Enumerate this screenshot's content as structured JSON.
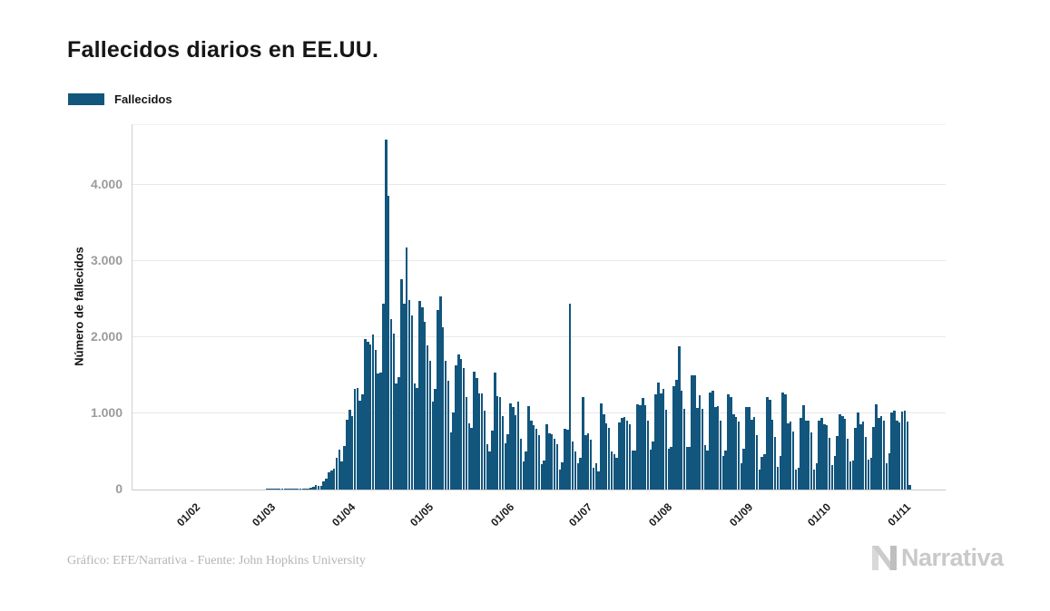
{
  "header": {
    "title": "Fallecidos diarios en EE.UU."
  },
  "legend": {
    "label": "Fallecidos",
    "swatch_color": "#12567D"
  },
  "footer": {
    "credit": "Gráfico: EFE/Narrativa - Fuente: John Hopkins University",
    "brand": "Narrativa"
  },
  "chart_data": {
    "type": "bar",
    "title": "Fallecidos diarios en EE.UU.",
    "series_name": "Fallecidos",
    "ylabel": "Número de fallecidos",
    "xlabel": "",
    "grid": true,
    "legend_position": "top-left",
    "bar_color": "#12567D",
    "ylim": [
      0,
      4782
    ],
    "y_ticks": [
      0,
      1000,
      2000,
      3000,
      4000
    ],
    "y_tick_labels": [
      "0",
      "1.000",
      "2.000",
      "3.000",
      "4.000"
    ],
    "x_start_date": "2020-01-22",
    "x_tick_labels": [
      "01/02",
      "01/03",
      "01/04",
      "01/05",
      "01/06",
      "01/07",
      "01/08",
      "01/09",
      "01/10",
      "01/11"
    ],
    "x_tick_day_offsets": [
      10,
      39,
      70,
      100,
      131,
      161,
      192,
      223,
      253,
      284
    ],
    "values": [
      0,
      0,
      0,
      0,
      0,
      0,
      0,
      0,
      0,
      0,
      0,
      0,
      0,
      0,
      0,
      0,
      0,
      0,
      0,
      0,
      0,
      0,
      0,
      0,
      0,
      0,
      0,
      0,
      0,
      0,
      0,
      0,
      0,
      0,
      0,
      0,
      0,
      0,
      1,
      1,
      5,
      1,
      4,
      1,
      3,
      2,
      4,
      4,
      2,
      8,
      3,
      8,
      9,
      12,
      17,
      23,
      41,
      57,
      49,
      46,
      111,
      140,
      225,
      247,
      268,
      411,
      525,
      363,
      573,
      912,
      1049,
      968,
      1321,
      1331,
      1165,
      1255,
      1970,
      1940,
      1900,
      2035,
      1830,
      1528,
      1535,
      2440,
      4591,
      3857,
      2240,
      2048,
      1393,
      1472,
      2762,
      2437,
      3179,
      2484,
      2286,
      1393,
      1333,
      2470,
      2390,
      2201,
      1897,
      1691,
      1154,
      1324,
      2350,
      2528,
      2129,
      1687,
      1422,
      750,
      1008,
      1630,
      1772,
      1715,
      1595,
      1218,
      865,
      808,
      1552,
      1461,
      1263,
      1260,
      1035,
      592,
      505,
      774,
      1535,
      1223,
      1212,
      960,
      605,
      730,
      1134,
      1083,
      974,
      1155,
      670,
      373,
      497,
      1093,
      906,
      841,
      802,
      710,
      330,
      380,
      851,
      738,
      722,
      672,
      594,
      267,
      354,
      800,
      781,
      2437,
      629,
      502,
      340,
      419,
      1209,
      715,
      735,
      656,
      281,
      340,
      241,
      1130,
      992,
      874,
      814,
      498,
      459,
      416,
      886,
      941,
      955,
      908,
      859,
      513,
      516,
      1117,
      1106,
      1205,
      1101,
      907,
      528,
      636,
      1244,
      1403,
      1258,
      1320,
      1052,
      537,
      556,
      1362,
      1438,
      1876,
      1299,
      1064,
      561,
      565,
      1504,
      1499,
      1076,
      1232,
      1053,
      578,
      506,
      1276,
      1302,
      1082,
      1096,
      903,
      446,
      511,
      1249,
      1217,
      992,
      952,
      889,
      340,
      531,
      1083,
      1077,
      914,
      955,
      717,
      267,
      424,
      459,
      1208,
      1180,
      919,
      692,
      298,
      436,
      1270,
      1252,
      867,
      889,
      756,
      258,
      288,
      936,
      1106,
      906,
      904,
      755,
      265,
      344,
      899,
      942,
      857,
      850,
      684,
      324,
      445,
      706,
      991,
      969,
      926,
      665,
      368,
      384,
      811,
      1014,
      858,
      897,
      694,
      388,
      421,
      825,
      1115,
      937,
      969,
      905,
      350,
      481,
      1017,
      1037,
      905,
      877,
      1025,
      1030,
      898,
      63
    ]
  }
}
